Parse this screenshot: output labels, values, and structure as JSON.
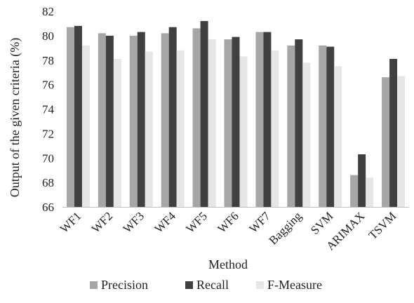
{
  "chart_data": {
    "type": "bar",
    "title": "",
    "xlabel": "Method",
    "ylabel": "Output of the given criteria (%)",
    "ylim": [
      66,
      82
    ],
    "yticks": [
      66,
      68,
      70,
      72,
      74,
      76,
      78,
      80,
      82
    ],
    "grid": false,
    "legend_position": "bottom",
    "categories": [
      "WF1",
      "WF2",
      "WF3",
      "WF4",
      "WF5",
      "WF6",
      "WF7",
      "Bagging",
      "SVM",
      "ARIMAX",
      "TSVM"
    ],
    "series": [
      {
        "name": "Precision",
        "color": "#a6a6a6",
        "values": [
          80.7,
          80.2,
          80.0,
          80.2,
          80.6,
          79.7,
          80.3,
          79.2,
          79.2,
          68.6,
          76.6
        ]
      },
      {
        "name": "Recall",
        "color": "#404040",
        "values": [
          80.8,
          80.0,
          80.3,
          80.7,
          81.2,
          79.9,
          80.3,
          79.7,
          79.1,
          70.3,
          78.1
        ]
      },
      {
        "name": "F-Measure",
        "color": "#e6e6e6",
        "values": [
          79.2,
          78.1,
          78.7,
          78.8,
          79.7,
          78.3,
          78.8,
          77.8,
          77.5,
          68.4,
          76.7
        ]
      }
    ]
  }
}
